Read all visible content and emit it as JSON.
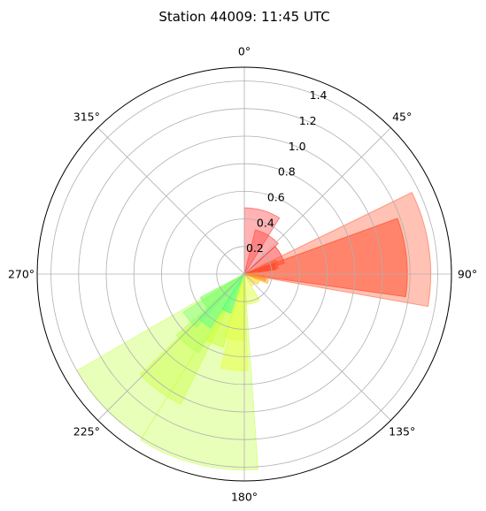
{
  "chart_data": {
    "type": "polar-bar",
    "title": "Station 44009: 11:45 UTC",
    "theta_direction": "clockwise",
    "theta_zero": "north",
    "theta_ticks": [
      "0°",
      "45°",
      "90°",
      "135°",
      "180°",
      "225°",
      "270°",
      "315°"
    ],
    "r_ticks": [
      "0.2",
      "0.4",
      "0.6",
      "0.8",
      "1.0",
      "1.2",
      "1.4"
    ],
    "rlim": [
      0,
      1.5
    ],
    "bars": [
      {
        "theta_start": 95,
        "theta_end": 103,
        "r": 0.15,
        "color": "#ffa040",
        "alpha": 0.5
      },
      {
        "theta_start": 103,
        "theta_end": 112,
        "r": 0.18,
        "color": "#ffb030",
        "alpha": 0.5
      },
      {
        "theta_start": 112,
        "theta_end": 128,
        "r": 0.12,
        "color": "#ffd020",
        "alpha": 0.5
      },
      {
        "theta_start": 128,
        "theta_end": 150,
        "r": 0.1,
        "color": "#ffe030",
        "alpha": 0.5
      },
      {
        "theta_start": 150,
        "theta_end": 176,
        "r": 0.22,
        "color": "#e0ff40",
        "alpha": 0.5
      },
      {
        "theta_start": 176,
        "theta_end": 182,
        "r": 0.2,
        "color": "#d8ff40",
        "alpha": 0.5
      },
      {
        "theta_start": 182,
        "theta_end": 198,
        "r": 0.13,
        "color": "#e8ff40",
        "alpha": 0.5
      },
      {
        "theta_start": 198,
        "theta_end": 205,
        "r": 0.07,
        "color": "#00d8ff",
        "alpha": 0.8
      },
      {
        "theta_start": 205,
        "theta_end": 212,
        "r": 0.09,
        "color": "#0080ff",
        "alpha": 0.8
      },
      {
        "theta_start": 212,
        "theta_end": 240,
        "r": 1.4,
        "color": "#ccff66",
        "alpha": 0.45
      },
      {
        "theta_start": 176,
        "theta_end": 212,
        "r": 1.42,
        "color": "#ccff66",
        "alpha": 0.45
      },
      {
        "theta_start": 206,
        "theta_end": 226,
        "r": 1.05,
        "color": "#ccff44",
        "alpha": 0.45
      },
      {
        "theta_start": 178,
        "theta_end": 194,
        "r": 0.7,
        "color": "#e8ff44",
        "alpha": 0.55
      },
      {
        "theta_start": 196,
        "theta_end": 210,
        "r": 0.55,
        "color": "#ccff33",
        "alpha": 0.55
      },
      {
        "theta_start": 210,
        "theta_end": 228,
        "r": 0.66,
        "color": "#b8ff55",
        "alpha": 0.5
      },
      {
        "theta_start": 222,
        "theta_end": 238,
        "r": 0.52,
        "color": "#88ff77",
        "alpha": 0.5
      },
      {
        "theta_start": 212,
        "theta_end": 226,
        "r": 0.46,
        "color": "#66ff88",
        "alpha": 0.55
      },
      {
        "theta_start": 198,
        "theta_end": 212,
        "r": 0.3,
        "color": "#44ff99",
        "alpha": 0.55
      },
      {
        "theta_start": 226,
        "theta_end": 242,
        "r": 0.36,
        "color": "#77ff66",
        "alpha": 0.5
      },
      {
        "theta_start": 180,
        "theta_end": 198,
        "r": 0.48,
        "color": "#ddff44",
        "alpha": 0.5
      },
      {
        "theta_start": 0,
        "theta_end": 32,
        "r": 0.48,
        "color": "#ff4040",
        "alpha": 0.4
      },
      {
        "theta_start": 14,
        "theta_end": 48,
        "r": 0.33,
        "color": "#ff4848",
        "alpha": 0.45
      },
      {
        "theta_start": 48,
        "theta_end": 75,
        "r": 0.3,
        "color": "#ff3030",
        "alpha": 0.5
      },
      {
        "theta_start": 66,
        "theta_end": 80,
        "r": 0.25,
        "color": "#ff5020",
        "alpha": 0.5
      },
      {
        "theta_start": 70,
        "theta_end": 82,
        "r": 0.23,
        "color": "#ff2010",
        "alpha": 0.6
      },
      {
        "theta_start": 70,
        "theta_end": 98,
        "r": 1.18,
        "color": "#ff4422",
        "alpha": 0.55
      },
      {
        "theta_start": 64,
        "theta_end": 100,
        "r": 1.35,
        "color": "#ff6644",
        "alpha": 0.4
      },
      {
        "theta_start": 82,
        "theta_end": 98,
        "r": 0.1,
        "color": "#ff8030",
        "alpha": 0.6
      },
      {
        "theta_start": 98,
        "theta_end": 108,
        "r": 0.16,
        "color": "#ff9030",
        "alpha": 0.55
      }
    ]
  }
}
